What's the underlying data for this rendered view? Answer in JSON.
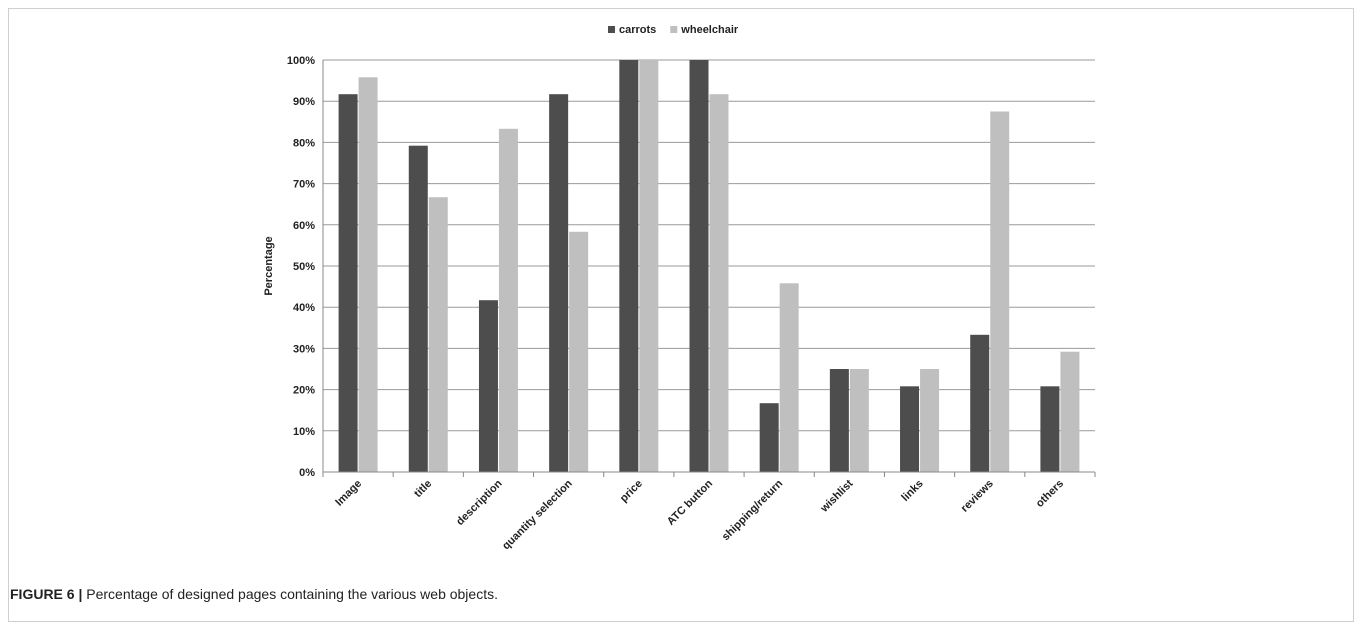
{
  "chart_data": {
    "type": "bar",
    "ylabel": "Percentage",
    "ylim": [
      0,
      100
    ],
    "yticks": [
      0,
      10,
      20,
      30,
      40,
      50,
      60,
      70,
      80,
      90,
      100
    ],
    "ytick_labels": [
      "0%",
      "10%",
      "20%",
      "30%",
      "40%",
      "50%",
      "60%",
      "70%",
      "80%",
      "90%",
      "100%"
    ],
    "grid": true,
    "legend_position": "top-center",
    "categories": [
      "Image",
      "title",
      "description",
      "quantity selection",
      "price",
      "ATC button",
      "shipping/return",
      "wishlist",
      "links",
      "reviews",
      "others"
    ],
    "series": [
      {
        "name": "carrots",
        "color": "#4d4d4d",
        "values": [
          91.7,
          79.2,
          41.7,
          91.7,
          100,
          100,
          16.7,
          25,
          20.8,
          33.3,
          20.8
        ]
      },
      {
        "name": "wheelchair",
        "color": "#bfbfbf",
        "values": [
          95.8,
          66.7,
          83.3,
          58.3,
          100,
          91.7,
          45.8,
          25,
          25,
          87.5,
          29.2
        ]
      }
    ]
  },
  "caption": {
    "label": "FIGURE 6 |",
    "text": " Percentage of designed pages containing the various web objects."
  }
}
